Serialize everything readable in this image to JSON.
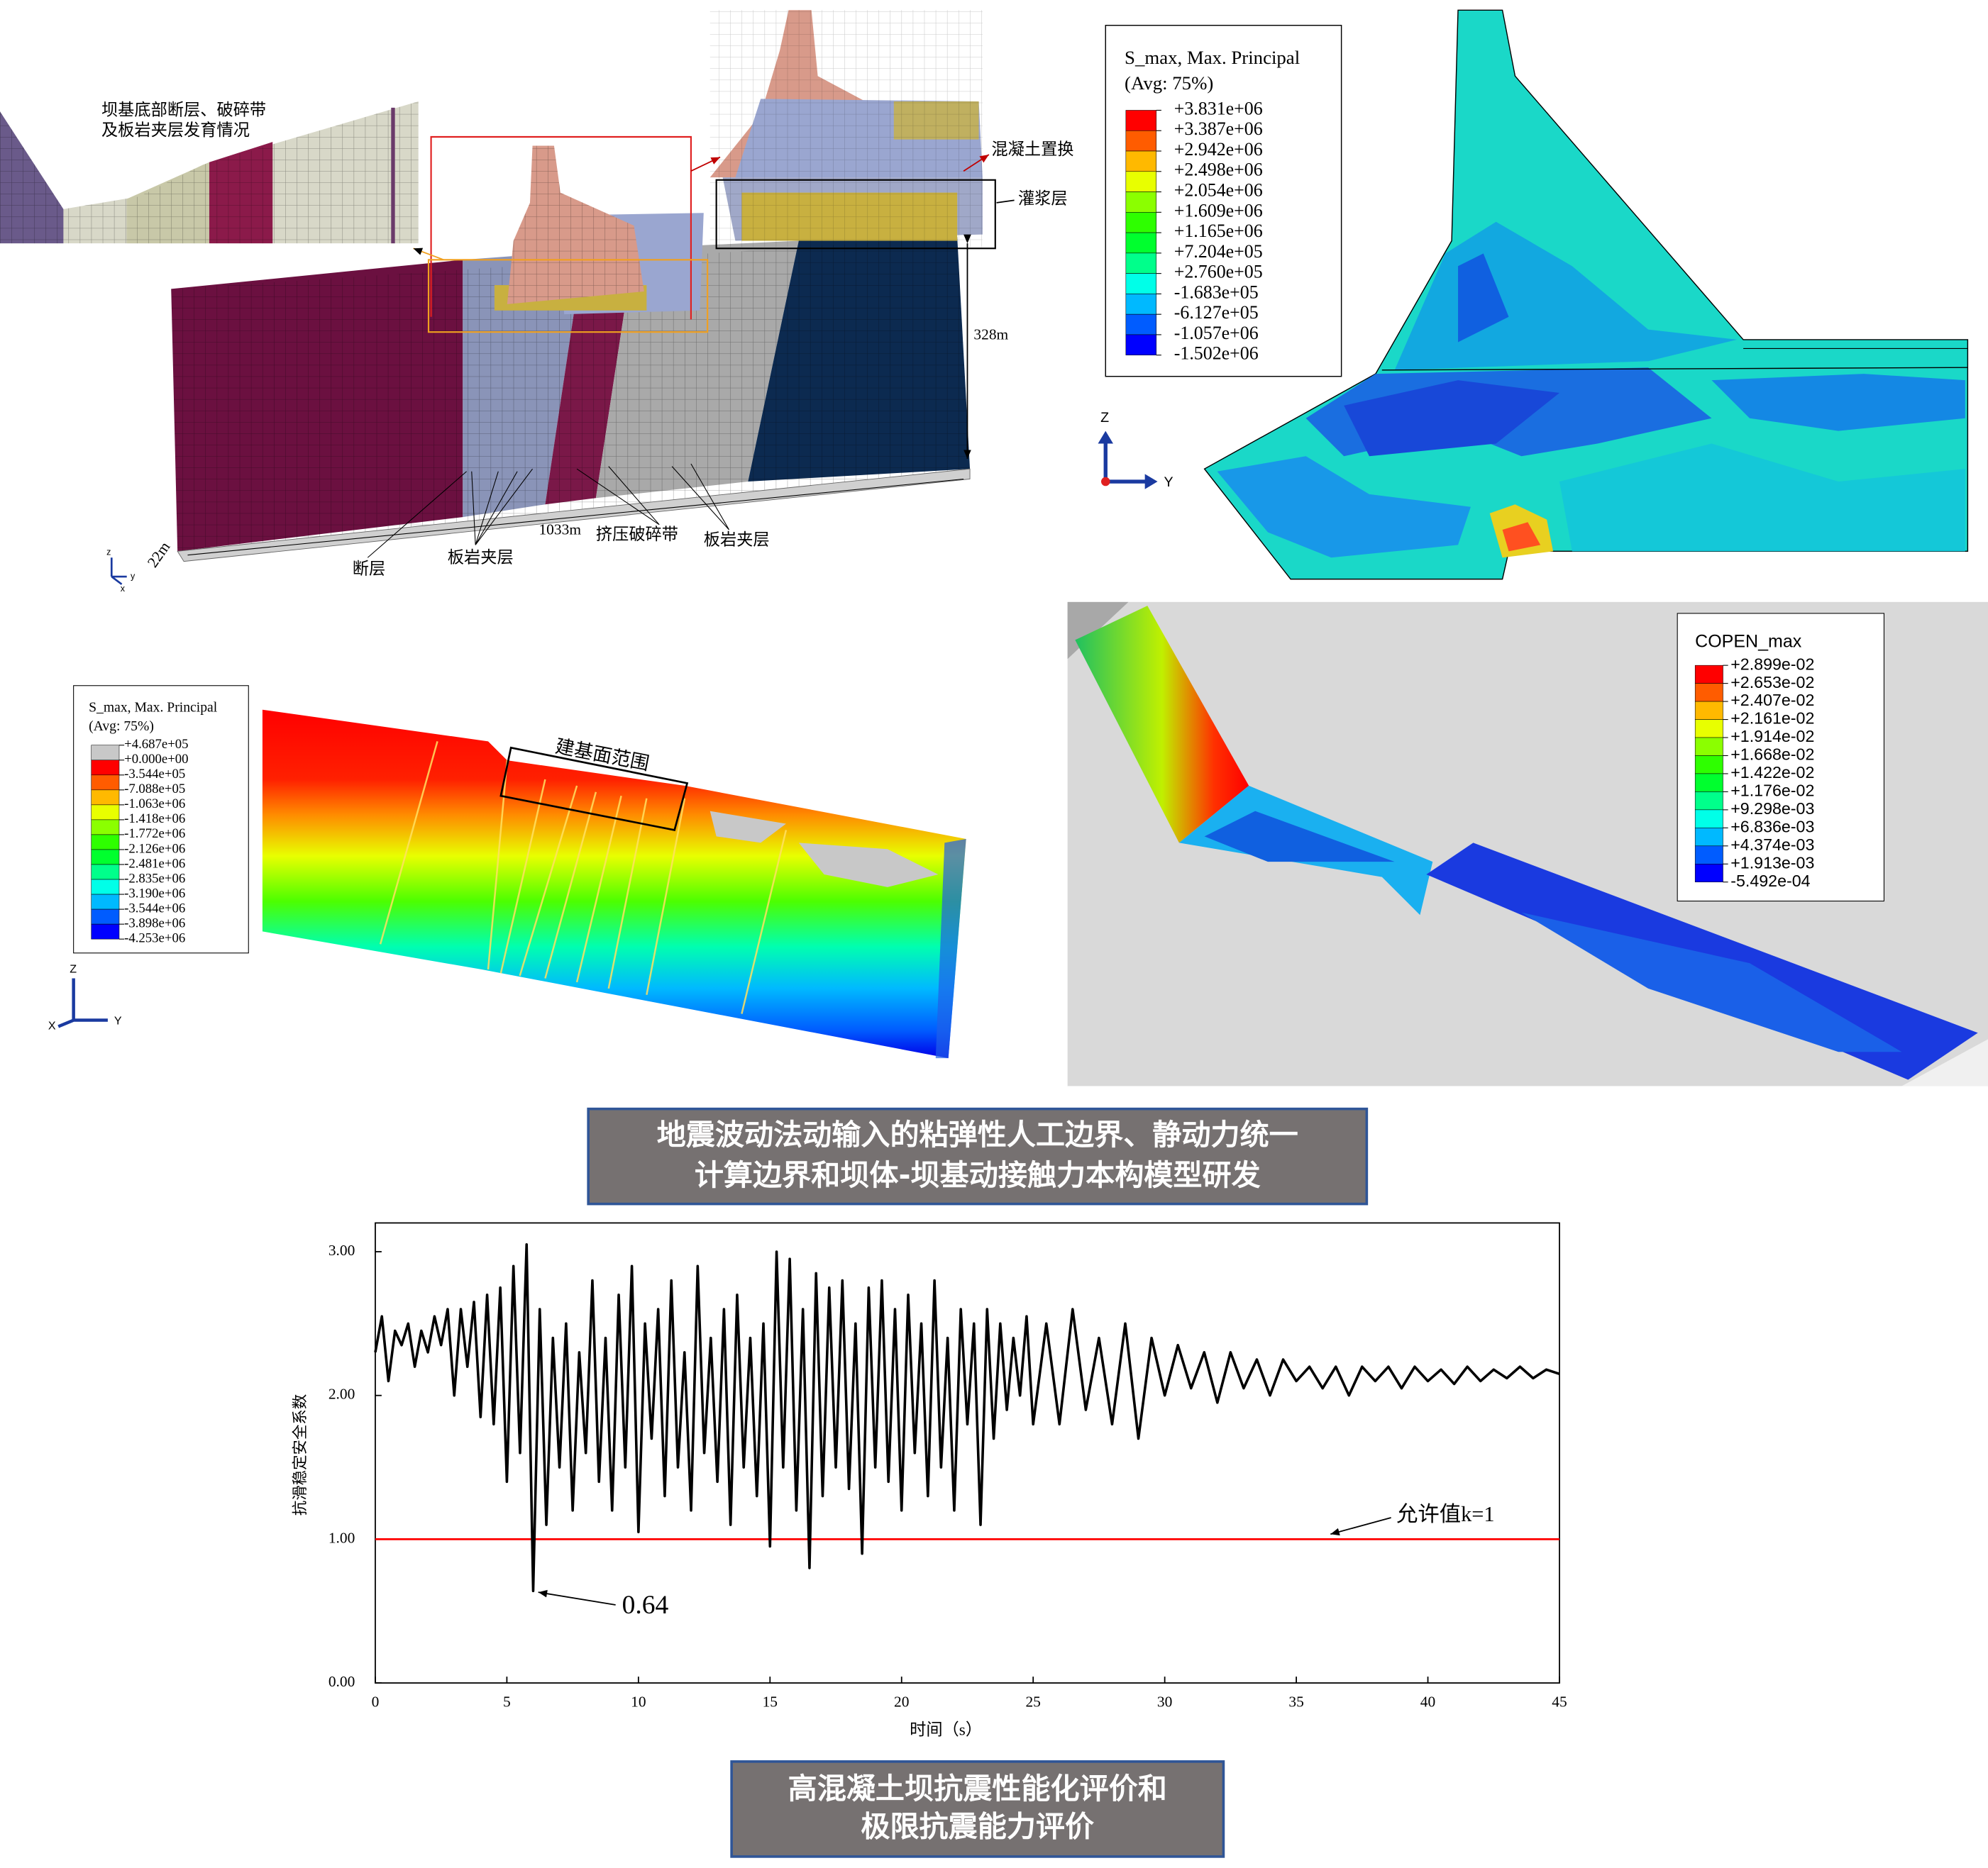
{
  "panels": {
    "model": {
      "labels": {
        "inset": [
          "坝基底部断层、破碎带",
          "及板岩夹层发育情况"
        ],
        "replace": "混凝土置换",
        "grout": "灌浆层",
        "height": "328m",
        "length": "1033m",
        "width": "22m",
        "fault": "断层",
        "slate_1": "板岩夹层",
        "crush": "挤压破碎带",
        "slate_2": "板岩夹层"
      },
      "triad": [
        "z",
        "y",
        "x"
      ]
    },
    "dam_stress": {
      "legend": {
        "title": "S_max, Max. Principal",
        "subtitle": "(Avg: 75%)",
        "labels": [
          "+3.831e+06",
          "+3.387e+06",
          "+2.942e+06",
          "+2.498e+06",
          "+2.054e+06",
          "+1.609e+06",
          "+1.165e+06",
          "+7.204e+05",
          "+2.760e+05",
          "-1.683e+05",
          "-6.127e+05",
          "-1.057e+06",
          "-1.502e+06"
        ],
        "colors": [
          "#ff0000",
          "#ff5c00",
          "#ffb900",
          "#e8ff00",
          "#8bff00",
          "#2eff00",
          "#00ff2e",
          "#00ff8b",
          "#00ffe8",
          "#00b9ff",
          "#005cff",
          "#0000ff"
        ]
      },
      "triad": [
        "Z",
        "Y"
      ]
    },
    "foundation_stress": {
      "legend": {
        "title": "S_max, Max. Principal",
        "subtitle": "(Avg: 75%)",
        "labels": [
          "+4.687e+05",
          "+0.000e+00",
          "-3.544e+05",
          "-7.088e+05",
          "-1.063e+06",
          "-1.418e+06",
          "-1.772e+06",
          "-2.126e+06",
          "-2.481e+06",
          "-2.835e+06",
          "-3.190e+06",
          "-3.544e+06",
          "-3.898e+06",
          "-4.253e+06"
        ],
        "colors": [
          "#c8c8c8",
          "#ff0000",
          "#ff5c00",
          "#ffb900",
          "#e8ff00",
          "#8bff00",
          "#2eff00",
          "#00ff2e",
          "#00ff8b",
          "#00ffe8",
          "#00b9ff",
          "#005cff",
          "#0000ff"
        ]
      },
      "label": "建基面范围",
      "triad": [
        "Z",
        "X",
        "Y"
      ]
    },
    "contact_open": {
      "legend": {
        "title": "COPEN_max",
        "labels": [
          "+2.899e-02",
          "+2.653e-02",
          "+2.407e-02",
          "+2.161e-02",
          "+1.914e-02",
          "+1.668e-02",
          "+1.422e-02",
          "+1.176e-02",
          "+9.298e-03",
          "+6.836e-03",
          "+4.374e-03",
          "+1.913e-03",
          "-5.492e-04"
        ],
        "colors": [
          "#ff0000",
          "#ff5c00",
          "#ffb900",
          "#e8ff00",
          "#8bff00",
          "#2eff00",
          "#00ff2e",
          "#00ff8b",
          "#00ffe8",
          "#00b9ff",
          "#005cff",
          "#0000ff"
        ]
      }
    }
  },
  "captions": [
    [
      "地震波动法动输入的粘弹性人工边界、静动力统一",
      "计算边界和坝体-坝基动接触力本构模型研发"
    ],
    [
      "高混凝土坝抗震性能化评价和",
      "极限抗震能力评价"
    ]
  ],
  "chart_data": {
    "type": "line",
    "xlabel": "时间（s）",
    "ylabel": "抗滑稳定安全系数",
    "xlim": [
      0,
      45
    ],
    "xticks": [
      0,
      5,
      10,
      15,
      20,
      25,
      30,
      35,
      40,
      45
    ],
    "ylim": [
      0,
      3.2
    ],
    "yticks": [
      {
        "value": 0,
        "label": "0.00"
      },
      {
        "value": 1,
        "label": "1.00"
      },
      {
        "value": 2,
        "label": "2.00"
      },
      {
        "value": 3,
        "label": "3.00"
      }
    ],
    "series": [
      {
        "color": "#000000",
        "x": [
          0,
          0.25,
          0.5,
          0.75,
          1,
          1.25,
          1.5,
          1.75,
          2,
          2.25,
          2.5,
          2.75,
          3,
          3.25,
          3.5,
          3.75,
          4,
          4.25,
          4.5,
          4.75,
          5,
          5.25,
          5.5,
          5.75,
          6,
          6.25,
          6.5,
          6.75,
          7,
          7.25,
          7.5,
          7.75,
          8,
          8.25,
          8.5,
          8.75,
          9,
          9.25,
          9.5,
          9.75,
          10,
          10.25,
          10.5,
          10.75,
          11,
          11.25,
          11.5,
          11.75,
          12,
          12.25,
          12.5,
          12.75,
          13,
          13.25,
          13.5,
          13.75,
          14,
          14.25,
          14.5,
          14.75,
          15,
          15.25,
          15.5,
          15.75,
          16,
          16.25,
          16.5,
          16.75,
          17,
          17.25,
          17.5,
          17.75,
          18,
          18.25,
          18.5,
          18.75,
          19,
          19.25,
          19.5,
          19.75,
          20,
          20.25,
          20.5,
          20.75,
          21,
          21.25,
          21.5,
          21.75,
          22,
          22.25,
          22.5,
          22.75,
          23,
          23.25,
          23.5,
          23.75,
          24,
          24.25,
          24.5,
          24.75,
          25,
          25.5,
          26,
          26.5,
          27,
          27.5,
          28,
          28.5,
          29,
          29.5,
          30,
          30.5,
          31,
          31.5,
          32,
          32.5,
          33,
          33.5,
          34,
          34.5,
          35,
          35.5,
          36,
          36.5,
          37,
          37.5,
          38,
          38.5,
          39,
          39.5,
          40,
          40.5,
          41,
          41.5,
          42,
          42.5,
          43,
          43.5,
          44,
          44.5,
          45
        ],
        "values": [
          2.3,
          2.55,
          2.1,
          2.45,
          2.35,
          2.5,
          2.2,
          2.45,
          2.3,
          2.55,
          2.35,
          2.6,
          2.0,
          2.6,
          2.2,
          2.65,
          1.85,
          2.7,
          1.8,
          2.75,
          1.4,
          2.9,
          1.6,
          3.05,
          0.64,
          2.6,
          1.1,
          2.4,
          1.5,
          2.5,
          1.2,
          2.3,
          1.6,
          2.8,
          1.4,
          2.4,
          1.2,
          2.7,
          1.5,
          2.9,
          1.05,
          2.5,
          1.7,
          2.6,
          1.3,
          2.8,
          1.5,
          2.3,
          1.2,
          2.9,
          1.6,
          2.4,
          1.4,
          2.6,
          1.1,
          2.7,
          1.5,
          2.4,
          1.3,
          2.5,
          0.95,
          3.0,
          1.5,
          2.95,
          1.2,
          2.6,
          0.8,
          2.85,
          1.3,
          2.75,
          1.5,
          2.8,
          1.35,
          2.5,
          0.9,
          2.75,
          1.5,
          2.8,
          1.4,
          2.6,
          1.2,
          2.7,
          1.6,
          2.5,
          1.3,
          2.8,
          1.5,
          2.4,
          1.2,
          2.6,
          1.8,
          2.5,
          1.1,
          2.6,
          1.7,
          2.5,
          1.9,
          2.4,
          2.0,
          2.55,
          1.8,
          2.5,
          1.8,
          2.6,
          1.9,
          2.4,
          1.8,
          2.5,
          1.7,
          2.4,
          2.0,
          2.35,
          2.05,
          2.3,
          1.95,
          2.3,
          2.05,
          2.25,
          2.0,
          2.25,
          2.1,
          2.2,
          2.05,
          2.2,
          2.0,
          2.2,
          2.1,
          2.2,
          2.05,
          2.2,
          2.1,
          2.18,
          2.08,
          2.2,
          2.1,
          2.18,
          2.12,
          2.2,
          2.12,
          2.18,
          2.15
        ]
      }
    ],
    "reference_line": {
      "value": 1,
      "color": "#ff0000",
      "label": "允许值k=1"
    },
    "annotations": [
      {
        "text": "0.64",
        "x": 6,
        "y": 0.64
      }
    ]
  }
}
